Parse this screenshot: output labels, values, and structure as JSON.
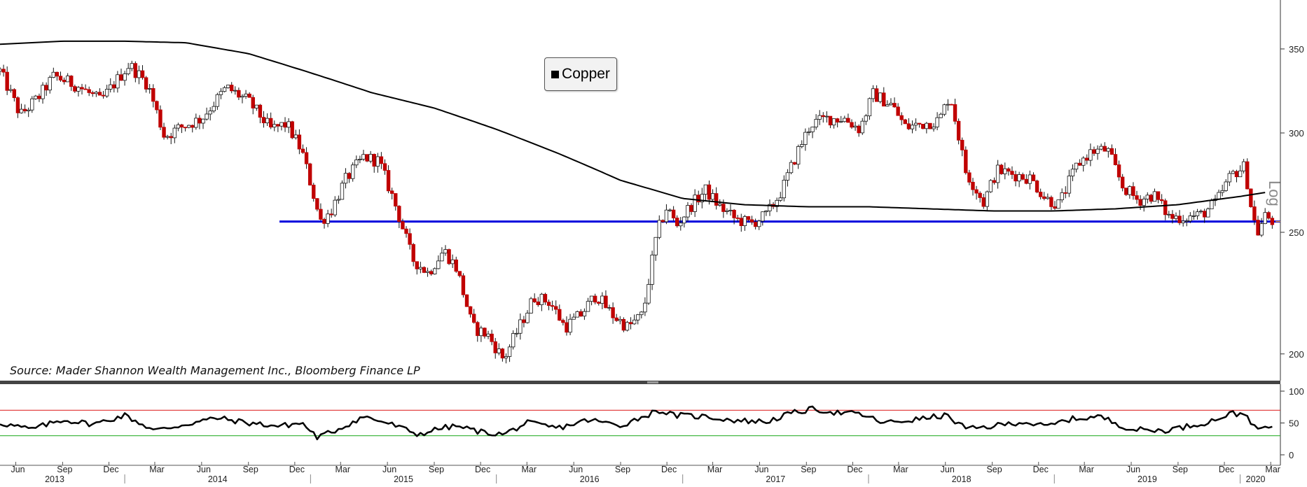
{
  "legend": {
    "label": "Copper"
  },
  "source_note": "Source: Mader Shannon Wealth Management Inc., Bloomberg Finance LP",
  "scale_label": "Log",
  "colors": {
    "up_candle": "#ffffff",
    "down_candle": "#c00000",
    "moving_average": "#000000",
    "support_line": "#0000dd",
    "last_price_marker": "#e8a040",
    "rsi_overbought": "#e03030",
    "rsi_oversold": "#30b030"
  },
  "chart_data": [
    {
      "type": "candlestick",
      "title": "",
      "y_scale": "log",
      "ylim": [
        190,
        365
      ],
      "y_ticks": [
        200,
        250,
        300,
        350
      ],
      "x_range": [
        "2013-05-01",
        "2020-03-20"
      ],
      "x_tick_labels": [
        "Jun",
        "Sep",
        "Dec",
        "Mar",
        "Jun",
        "Sep",
        "Dec",
        "Mar",
        "Jun",
        "Sep",
        "Dec",
        "Mar",
        "Jun",
        "Sep",
        "Dec",
        "Mar",
        "Jun",
        "Sep",
        "Dec",
        "Mar",
        "Jun",
        "Sep",
        "Dec",
        "Mar",
        "Jun",
        "Sep",
        "Dec",
        "Mar"
      ],
      "year_labels": [
        "2013",
        "2014",
        "2015",
        "2016",
        "2017",
        "2018",
        "2019",
        "2020"
      ],
      "close_path": [
        [
          "2013-05-01",
          336
        ],
        [
          "2013-06-10",
          310
        ],
        [
          "2013-07-15",
          320
        ],
        [
          "2013-08-15",
          333
        ],
        [
          "2013-10-01",
          327
        ],
        [
          "2013-11-15",
          318
        ],
        [
          "2014-01-10",
          340
        ],
        [
          "2014-02-15",
          328
        ],
        [
          "2014-03-20",
          298
        ],
        [
          "2014-04-20",
          303
        ],
        [
          "2014-06-01",
          308
        ],
        [
          "2014-07-20",
          326
        ],
        [
          "2014-09-01",
          318
        ],
        [
          "2014-10-15",
          302
        ],
        [
          "2014-11-15",
          305
        ],
        [
          "2014-12-15",
          290
        ],
        [
          "2015-01-20",
          255
        ],
        [
          "2015-02-10",
          260
        ],
        [
          "2015-03-10",
          275
        ],
        [
          "2015-04-15",
          287
        ],
        [
          "2015-05-15",
          285
        ],
        [
          "2015-06-15",
          264
        ],
        [
          "2015-07-20",
          238
        ],
        [
          "2015-08-20",
          232
        ],
        [
          "2015-09-20",
          242
        ],
        [
          "2015-10-15",
          234
        ],
        [
          "2015-11-15",
          210
        ],
        [
          "2015-12-15",
          207
        ],
        [
          "2016-01-15",
          198
        ],
        [
          "2016-02-15",
          210
        ],
        [
          "2016-03-15",
          222
        ],
        [
          "2016-04-15",
          220
        ],
        [
          "2016-05-15",
          210
        ],
        [
          "2016-06-15",
          215
        ],
        [
          "2016-07-15",
          223
        ],
        [
          "2016-08-15",
          215
        ],
        [
          "2016-09-15",
          210
        ],
        [
          "2016-10-15",
          215
        ],
        [
          "2016-11-12",
          250
        ],
        [
          "2016-12-01",
          262
        ],
        [
          "2016-12-20",
          253
        ],
        [
          "2017-01-15",
          262
        ],
        [
          "2017-02-15",
          270
        ],
        [
          "2017-03-15",
          262
        ],
        [
          "2017-04-15",
          256
        ],
        [
          "2017-05-15",
          254
        ],
        [
          "2017-06-15",
          258
        ],
        [
          "2017-07-15",
          270
        ],
        [
          "2017-08-15",
          290
        ],
        [
          "2017-09-10",
          305
        ],
        [
          "2017-10-10",
          308
        ],
        [
          "2017-11-15",
          308
        ],
        [
          "2017-12-15",
          302
        ],
        [
          "2018-01-10",
          322
        ],
        [
          "2018-02-15",
          316
        ],
        [
          "2018-03-15",
          303
        ],
        [
          "2018-04-15",
          305
        ],
        [
          "2018-05-20",
          307
        ],
        [
          "2018-06-10",
          322
        ],
        [
          "2018-07-10",
          280
        ],
        [
          "2018-08-15",
          264
        ],
        [
          "2018-09-10",
          280
        ],
        [
          "2018-10-15",
          278
        ],
        [
          "2018-11-15",
          276
        ],
        [
          "2018-12-15",
          266
        ],
        [
          "2019-01-10",
          263
        ],
        [
          "2019-02-15",
          283
        ],
        [
          "2019-03-15",
          290
        ],
        [
          "2019-04-15",
          291
        ],
        [
          "2019-05-15",
          272
        ],
        [
          "2019-06-15",
          265
        ],
        [
          "2019-07-15",
          268
        ],
        [
          "2019-08-15",
          257
        ],
        [
          "2019-09-15",
          257
        ],
        [
          "2019-10-15",
          258
        ],
        [
          "2019-11-15",
          264
        ],
        [
          "2019-12-15",
          278
        ],
        [
          "2020-01-10",
          282
        ],
        [
          "2020-01-25",
          258
        ],
        [
          "2020-02-05",
          250
        ],
        [
          "2020-02-20",
          258
        ],
        [
          "2020-03-05",
          255
        ]
      ],
      "moving_average_path": [
        [
          "2013-05-01",
          353
        ],
        [
          "2013-09-01",
          355
        ],
        [
          "2014-01-01",
          355
        ],
        [
          "2014-05-01",
          354
        ],
        [
          "2014-09-01",
          347
        ],
        [
          "2015-01-01",
          335
        ],
        [
          "2015-05-01",
          323
        ],
        [
          "2015-09-01",
          314
        ],
        [
          "2016-01-01",
          302
        ],
        [
          "2016-05-01",
          289
        ],
        [
          "2016-09-01",
          275
        ],
        [
          "2017-01-01",
          266
        ],
        [
          "2017-05-01",
          263
        ],
        [
          "2017-09-01",
          262
        ],
        [
          "2018-01-01",
          262
        ],
        [
          "2018-05-01",
          261
        ],
        [
          "2018-09-01",
          260
        ],
        [
          "2019-01-01",
          260
        ],
        [
          "2019-05-01",
          261
        ],
        [
          "2019-09-01",
          263
        ],
        [
          "2020-01-01",
          267
        ],
        [
          "2020-02-20",
          269
        ]
      ],
      "support_line": {
        "value": 255,
        "from": "2014-11-01",
        "to": "2020-03-20"
      },
      "last_price": 255,
      "legend": [
        "Copper"
      ]
    },
    {
      "type": "line",
      "title": "",
      "ylim": [
        0,
        100
      ],
      "y_ticks": [
        0,
        50,
        100
      ],
      "reference_lines": [
        70,
        30
      ],
      "series_path": [
        [
          "2013-05-01",
          50
        ],
        [
          "2013-07-01",
          40
        ],
        [
          "2013-09-01",
          55
        ],
        [
          "2013-11-01",
          48
        ],
        [
          "2014-01-01",
          62
        ],
        [
          "2014-03-01",
          38
        ],
        [
          "2014-05-01",
          48
        ],
        [
          "2014-07-01",
          58
        ],
        [
          "2014-09-01",
          50
        ],
        [
          "2014-11-01",
          45
        ],
        [
          "2014-12-15",
          50
        ],
        [
          "2015-01-15",
          27
        ],
        [
          "2015-03-01",
          42
        ],
        [
          "2015-04-15",
          60
        ],
        [
          "2015-06-01",
          50
        ],
        [
          "2015-08-01",
          32
        ],
        [
          "2015-09-15",
          42
        ],
        [
          "2015-10-15",
          45
        ],
        [
          "2015-12-01",
          36
        ],
        [
          "2016-01-15",
          32
        ],
        [
          "2016-03-01",
          50
        ],
        [
          "2016-05-01",
          42
        ],
        [
          "2016-07-01",
          55
        ],
        [
          "2016-09-01",
          46
        ],
        [
          "2016-11-15",
          70
        ],
        [
          "2016-12-15",
          62
        ],
        [
          "2017-02-15",
          60
        ],
        [
          "2017-04-15",
          54
        ],
        [
          "2017-06-15",
          52
        ],
        [
          "2017-08-01",
          65
        ],
        [
          "2017-09-15",
          72
        ],
        [
          "2017-11-01",
          66
        ],
        [
          "2017-12-15",
          64
        ],
        [
          "2018-02-01",
          50
        ],
        [
          "2018-04-01",
          55
        ],
        [
          "2018-06-01",
          62
        ],
        [
          "2018-07-15",
          40
        ],
        [
          "2018-09-01",
          45
        ],
        [
          "2018-11-01",
          52
        ],
        [
          "2018-12-15",
          44
        ],
        [
          "2019-02-01",
          56
        ],
        [
          "2019-04-01",
          60
        ],
        [
          "2019-06-01",
          40
        ],
        [
          "2019-08-01",
          38
        ],
        [
          "2019-09-15",
          44
        ],
        [
          "2019-11-01",
          52
        ],
        [
          "2019-12-15",
          65
        ],
        [
          "2020-01-15",
          63
        ],
        [
          "2020-02-01",
          38
        ],
        [
          "2020-02-20",
          44
        ],
        [
          "2020-03-05",
          42
        ]
      ]
    }
  ]
}
